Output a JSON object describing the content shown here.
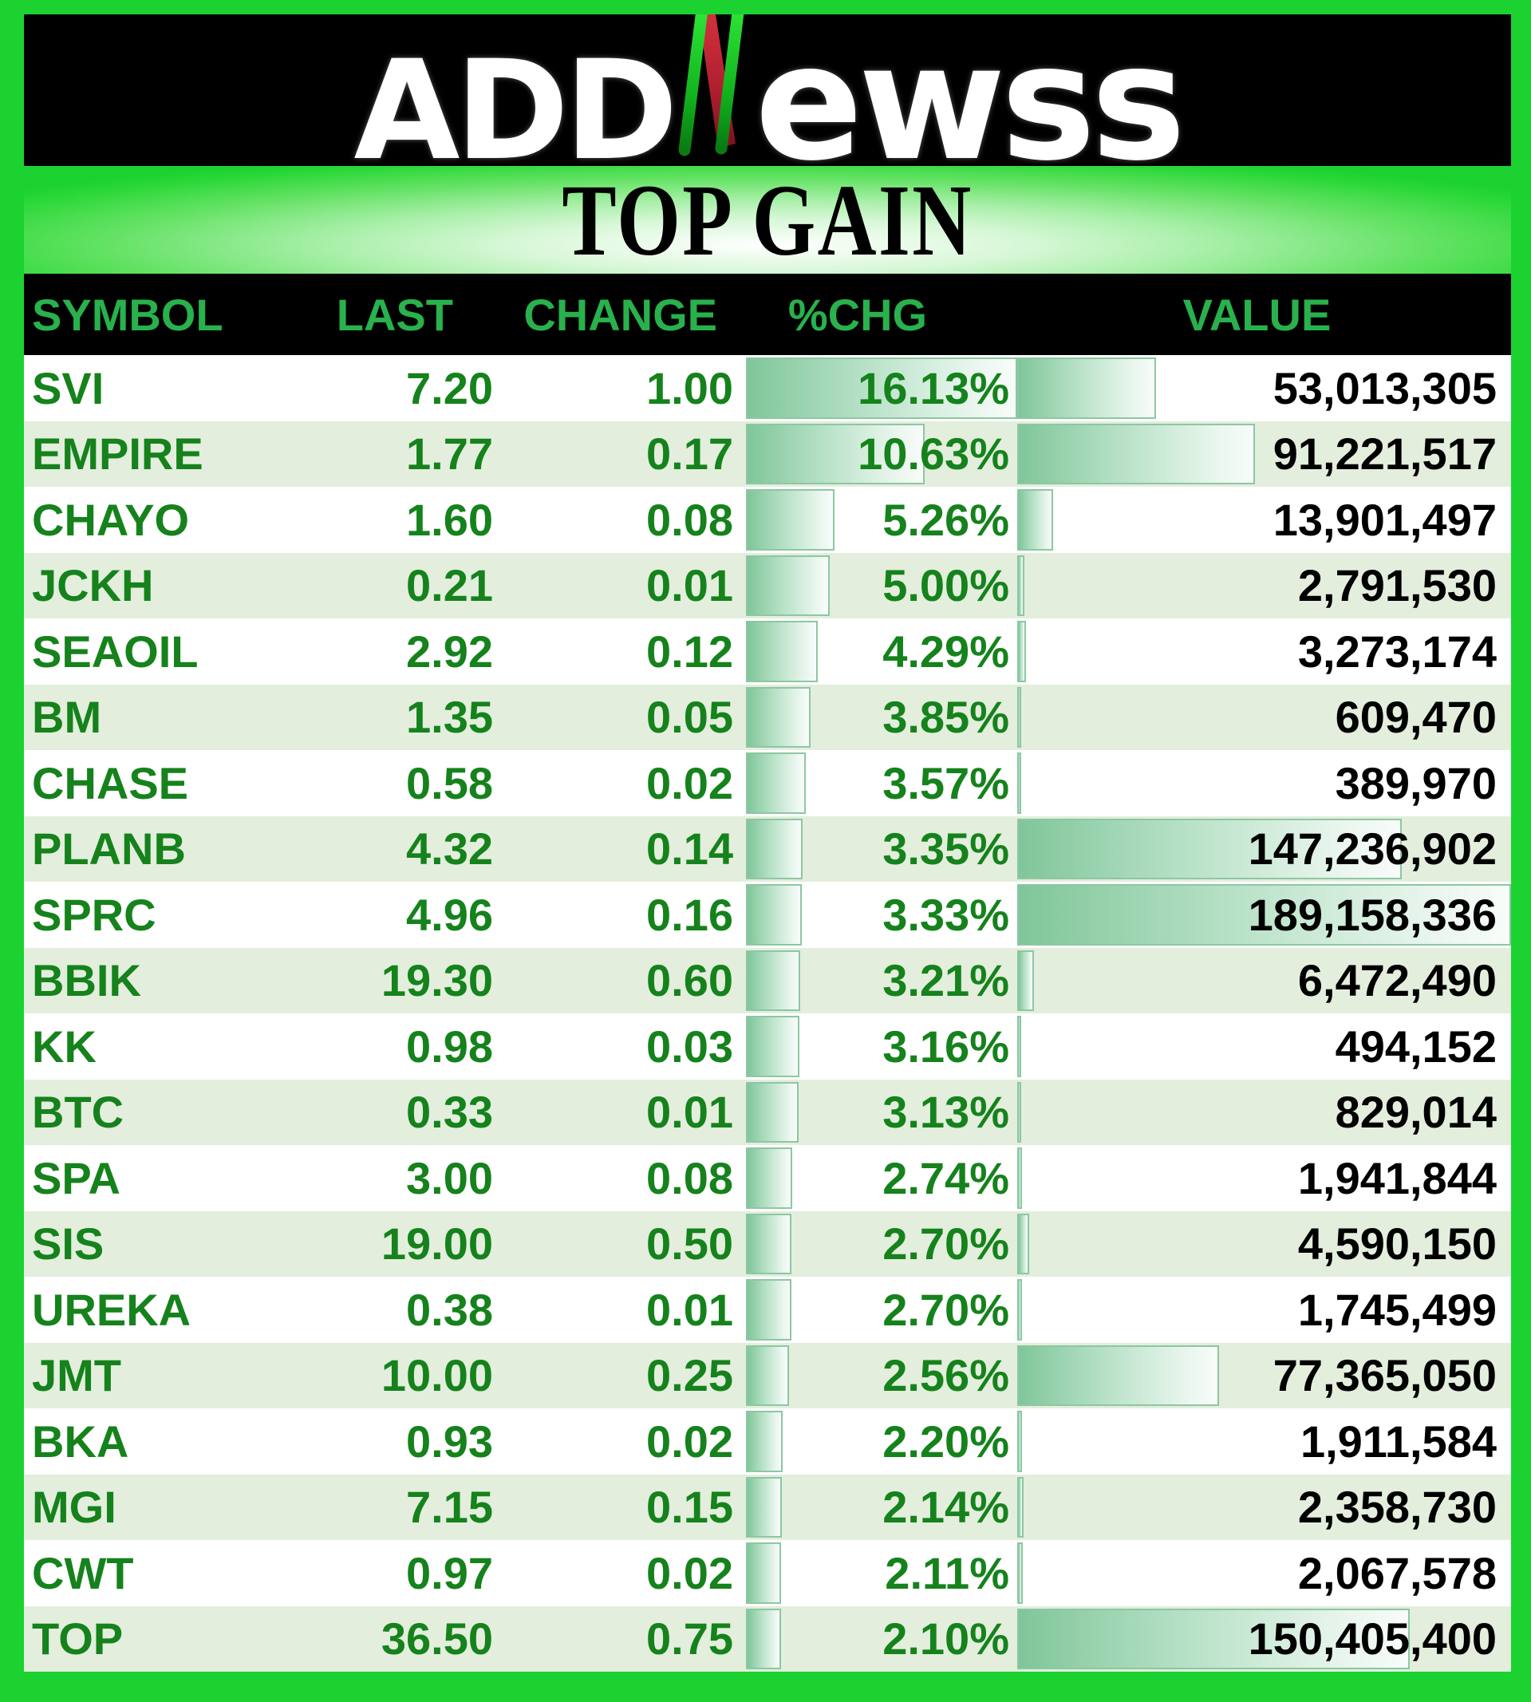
{
  "logo": {
    "prefix": "ADD",
    "suffix": "ewss",
    "n_icon": "green-red-slash-n"
  },
  "title": "TOP GAIN",
  "colors": {
    "frame_green": "#1cd231",
    "header_bar_bg": "#000000",
    "header_text_green": "#28b14c",
    "row_text_green": "#15821c",
    "value_text": "#000000",
    "row_stripe": "#e3eedd",
    "bar_fill_start": "#80c69a",
    "bar_border": "#8cc7a3"
  },
  "chart_data": {
    "type": "table",
    "title": "TOP GAIN",
    "columns": [
      "SYMBOL",
      "LAST",
      "CHANGE",
      "%CHG",
      "VALUE"
    ],
    "pct_axis_max": 16.13,
    "value_axis_max": 189158336,
    "bar_columns": [
      "%CHG",
      "VALUE"
    ],
    "rows": [
      {
        "symbol": "SVI",
        "last": "7.20",
        "change": "1.00",
        "pct": "16.13%",
        "pct_num": 16.13,
        "value": "53,013,305",
        "value_num": 53013305
      },
      {
        "symbol": "EMPIRE",
        "last": "1.77",
        "change": "0.17",
        "pct": "10.63%",
        "pct_num": 10.63,
        "value": "91,221,517",
        "value_num": 91221517
      },
      {
        "symbol": "CHAYO",
        "last": "1.60",
        "change": "0.08",
        "pct": "5.26%",
        "pct_num": 5.26,
        "value": "13,901,497",
        "value_num": 13901497
      },
      {
        "symbol": "JCKH",
        "last": "0.21",
        "change": "0.01",
        "pct": "5.00%",
        "pct_num": 5.0,
        "value": "2,791,530",
        "value_num": 2791530
      },
      {
        "symbol": "SEAOIL",
        "last": "2.92",
        "change": "0.12",
        "pct": "4.29%",
        "pct_num": 4.29,
        "value": "3,273,174",
        "value_num": 3273174
      },
      {
        "symbol": "BM",
        "last": "1.35",
        "change": "0.05",
        "pct": "3.85%",
        "pct_num": 3.85,
        "value": "609,470",
        "value_num": 609470
      },
      {
        "symbol": "CHASE",
        "last": "0.58",
        "change": "0.02",
        "pct": "3.57%",
        "pct_num": 3.57,
        "value": "389,970",
        "value_num": 389970
      },
      {
        "symbol": "PLANB",
        "last": "4.32",
        "change": "0.14",
        "pct": "3.35%",
        "pct_num": 3.35,
        "value": "147,236,902",
        "value_num": 147236902
      },
      {
        "symbol": "SPRC",
        "last": "4.96",
        "change": "0.16",
        "pct": "3.33%",
        "pct_num": 3.33,
        "value": "189,158,336",
        "value_num": 189158336
      },
      {
        "symbol": "BBIK",
        "last": "19.30",
        "change": "0.60",
        "pct": "3.21%",
        "pct_num": 3.21,
        "value": "6,472,490",
        "value_num": 6472490
      },
      {
        "symbol": "KK",
        "last": "0.98",
        "change": "0.03",
        "pct": "3.16%",
        "pct_num": 3.16,
        "value": "494,152",
        "value_num": 494152
      },
      {
        "symbol": "BTC",
        "last": "0.33",
        "change": "0.01",
        "pct": "3.13%",
        "pct_num": 3.13,
        "value": "829,014",
        "value_num": 829014
      },
      {
        "symbol": "SPA",
        "last": "3.00",
        "change": "0.08",
        "pct": "2.74%",
        "pct_num": 2.74,
        "value": "1,941,844",
        "value_num": 1941844
      },
      {
        "symbol": "SIS",
        "last": "19.00",
        "change": "0.50",
        "pct": "2.70%",
        "pct_num": 2.7,
        "value": "4,590,150",
        "value_num": 4590150
      },
      {
        "symbol": "UREKA",
        "last": "0.38",
        "change": "0.01",
        "pct": "2.70%",
        "pct_num": 2.7,
        "value": "1,745,499",
        "value_num": 1745499
      },
      {
        "symbol": "JMT",
        "last": "10.00",
        "change": "0.25",
        "pct": "2.56%",
        "pct_num": 2.56,
        "value": "77,365,050",
        "value_num": 77365050
      },
      {
        "symbol": "BKA",
        "last": "0.93",
        "change": "0.02",
        "pct": "2.20%",
        "pct_num": 2.2,
        "value": "1,911,584",
        "value_num": 1911584
      },
      {
        "symbol": "MGI",
        "last": "7.15",
        "change": "0.15",
        "pct": "2.14%",
        "pct_num": 2.14,
        "value": "2,358,730",
        "value_num": 2358730
      },
      {
        "symbol": "CWT",
        "last": "0.97",
        "change": "0.02",
        "pct": "2.11%",
        "pct_num": 2.11,
        "value": "2,067,578",
        "value_num": 2067578
      },
      {
        "symbol": "TOP",
        "last": "36.50",
        "change": "0.75",
        "pct": "2.10%",
        "pct_num": 2.1,
        "value": "150,405,400",
        "value_num": 150405400
      }
    ]
  }
}
